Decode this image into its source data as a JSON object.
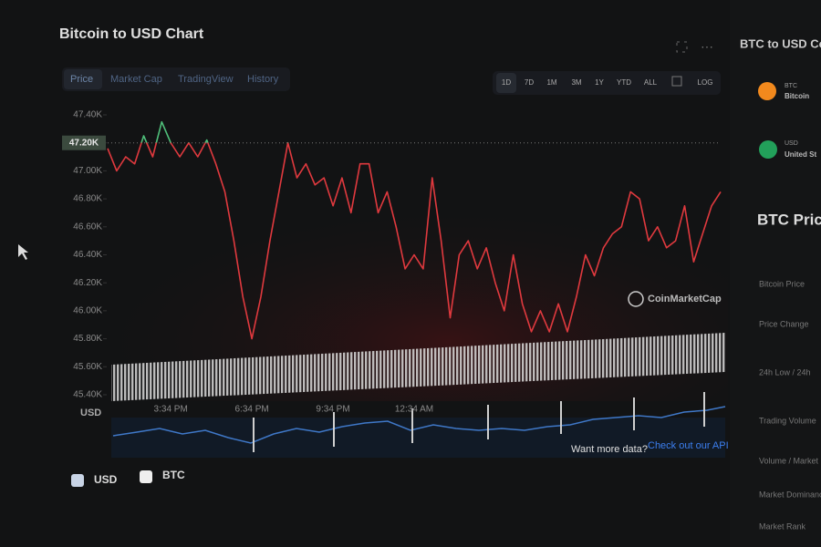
{
  "header": {
    "title": "Bitcoin to USD Chart"
  },
  "tabs": [
    "Price",
    "Market Cap",
    "TradingView",
    "History"
  ],
  "ranges": [
    "1D",
    "7D",
    "1M",
    "3M",
    "1Y",
    "YTD",
    "ALL",
    "LOG"
  ],
  "chart_data": {
    "type": "line",
    "categories": [
      null,
      null,
      null,
      null,
      null,
      null,
      null,
      "3:34 PM",
      null,
      null,
      null,
      null,
      null,
      null,
      null,
      null,
      "6:34 PM",
      null,
      null,
      null,
      null,
      null,
      null,
      null,
      null,
      "9:34 PM",
      null,
      null,
      null,
      null,
      null,
      null,
      null,
      null,
      "12:34 AM",
      null,
      null,
      null,
      null,
      null,
      null,
      null,
      null,
      null,
      null,
      null,
      null,
      null,
      null,
      null,
      null,
      null,
      null,
      null,
      null,
      null,
      null,
      null,
      null,
      null,
      null,
      null,
      null,
      null,
      null,
      null,
      null,
      null,
      null
    ],
    "values": [
      47.16,
      47.0,
      47.1,
      47.05,
      47.25,
      47.1,
      47.35,
      47.2,
      47.1,
      47.2,
      47.1,
      47.22,
      47.05,
      46.85,
      46.5,
      46.1,
      45.8,
      46.1,
      46.5,
      46.85,
      47.2,
      46.95,
      47.05,
      46.9,
      46.95,
      46.75,
      46.95,
      46.7,
      47.05,
      47.05,
      46.7,
      46.85,
      46.6,
      46.3,
      46.4,
      46.3,
      46.95,
      46.5,
      45.95,
      46.4,
      46.5,
      46.3,
      46.45,
      46.2,
      46.0,
      46.4,
      46.05,
      45.85,
      46.0,
      45.85,
      46.05,
      45.85,
      46.1,
      46.4,
      46.25,
      46.45,
      46.55,
      46.6,
      46.85,
      46.8,
      46.5,
      46.6,
      46.45,
      46.5,
      46.75,
      46.35,
      46.55,
      46.75,
      46.85
    ],
    "current_price": {
      "value": 47.2,
      "label": "47.20K"
    },
    "color_above": "#4fbf7a",
    "color_below": "#e0393e",
    "ylim": [
      45.4,
      47.4
    ],
    "yticks": [
      {
        "value": 45.4,
        "label": "45.40K"
      },
      {
        "value": 45.6,
        "label": "45.60K"
      },
      {
        "value": 45.8,
        "label": "45.80K"
      },
      {
        "value": 46.0,
        "label": "46.00K"
      },
      {
        "value": 46.2,
        "label": "46.20K"
      },
      {
        "value": 46.4,
        "label": "46.40K"
      },
      {
        "value": 46.6,
        "label": "46.60K"
      },
      {
        "value": 46.8,
        "label": "46.80K"
      },
      {
        "value": 47.0,
        "label": "47.00K"
      },
      {
        "value": 47.2,
        "label": "47.20K"
      },
      {
        "value": 47.4,
        "label": "47.40K"
      }
    ],
    "grid": false,
    "watermark": "CoinMarketCap"
  },
  "navigator_label": "USD",
  "legend": [
    "USD",
    "BTC"
  ],
  "api_prompt": "Want more data?",
  "api_link": "Check out our API",
  "side": {
    "title": "BTC to USD Co",
    "items": [
      {
        "code": "BTC",
        "name": "Bitcoin"
      },
      {
        "code": "USD",
        "name": "United St"
      }
    ],
    "price_title": "BTC Price",
    "stats": [
      "Bitcoin Price",
      "Price Change",
      "24h Low / 24h",
      "Trading Volume",
      "Volume / Market",
      "Market Dominance",
      "Market Rank"
    ]
  }
}
